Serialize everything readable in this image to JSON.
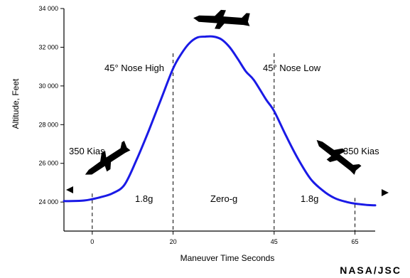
{
  "chart_data": {
    "type": "line",
    "title": "",
    "xlabel": "Maneuver Time Seconds",
    "ylabel": "Altitude, Feet",
    "xlim": [
      -7,
      70
    ],
    "ylim": [
      22500,
      34000
    ],
    "x_ticks": [
      0,
      20,
      45,
      65
    ],
    "x_tick_labels": [
      "0",
      "20",
      "45",
      "65"
    ],
    "y_ticks": [
      24000,
      26000,
      28000,
      30000,
      32000,
      34000
    ],
    "y_tick_labels": [
      "24 000",
      "26 000",
      "28 000",
      "30 000",
      "32 000",
      "34 000"
    ],
    "grid": false,
    "series": [
      {
        "color": "#1a1ae6",
        "x": [
          -7,
          -5,
          -2,
          0,
          2,
          5,
          8,
          11,
          14,
          17,
          20,
          22,
          24,
          26,
          28,
          30,
          32,
          34,
          36,
          38,
          40,
          43,
          45,
          48,
          51,
          54,
          57,
          60,
          63,
          65,
          68,
          70
        ],
        "y": [
          24050,
          24050,
          24080,
          24150,
          24250,
          24450,
          24900,
          26200,
          27700,
          29300,
          30900,
          31650,
          32200,
          32500,
          32550,
          32550,
          32400,
          32000,
          31400,
          30750,
          30300,
          29300,
          28700,
          27400,
          26200,
          25200,
          24600,
          24200,
          24000,
          23920,
          23850,
          23830
        ]
      }
    ],
    "vertical_markers": [
      0,
      20,
      45,
      65
    ],
    "annotations": {
      "nose_high": "45° Nose High",
      "nose_low": "45° Nose Low",
      "kias_left": "350 Kias",
      "kias_right": "350 Kias",
      "g_left": "1.8g",
      "g_middle": "Zero-g",
      "g_right": "1.8g"
    },
    "credit": "NASA/JSC"
  }
}
